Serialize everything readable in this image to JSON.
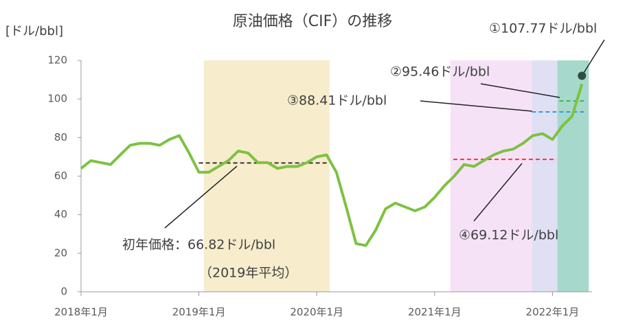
{
  "chart_data": {
    "type": "line",
    "title": "原油価格（CIF）の推移",
    "y_label": "[ドル/bbl]",
    "categories": [
      "2018年1月",
      null,
      null,
      null,
      null,
      null,
      null,
      null,
      null,
      null,
      null,
      null,
      "2019年1月",
      null,
      null,
      null,
      null,
      null,
      null,
      null,
      null,
      null,
      null,
      null,
      "2020年1月",
      null,
      null,
      null,
      null,
      null,
      null,
      null,
      null,
      null,
      null,
      null,
      "2021年1月",
      null,
      null,
      null,
      null,
      null,
      null,
      null,
      null,
      null,
      null,
      null,
      "2022年1月",
      null,
      null,
      null
    ],
    "series": [
      {
        "name": "原油価格",
        "color": "#7dc242",
        "values": [
          64,
          68,
          67,
          66,
          71,
          76,
          77,
          77,
          76,
          79,
          81,
          72,
          62,
          62,
          65,
          68,
          73,
          72,
          67,
          67,
          64,
          65,
          65,
          67,
          70,
          71,
          62,
          44,
          25,
          24,
          32,
          43,
          46,
          44,
          42,
          44,
          49,
          55,
          60,
          66,
          65,
          68,
          71,
          73,
          74,
          77,
          81,
          82,
          79,
          86,
          91,
          107.77
        ]
      }
    ],
    "ylim": [
      0,
      120
    ],
    "yticks": [
      0,
      20,
      40,
      60,
      80,
      100,
      120
    ],
    "bands": [
      {
        "from": 12.5,
        "to": 25.3,
        "color": "#f7eccc"
      },
      {
        "from": 37.6,
        "to": 45.9,
        "color": "#f6e2f7"
      },
      {
        "from": 45.9,
        "to": 48.5,
        "color": "#e0e0f5"
      },
      {
        "from": 48.5,
        "to": 51.7,
        "color": "#a6d9cc"
      }
    ],
    "reference_lines": [
      {
        "value": 66.82,
        "from": 12.0,
        "to": 25.2,
        "color": "#333333"
      },
      {
        "value": 68.7,
        "from": 37.9,
        "to": 48.4,
        "color": "#ff3333"
      },
      {
        "value": 93.3,
        "from": 45.9,
        "to": 51.5,
        "color": "#3399dd"
      },
      {
        "value": 99,
        "from": 48.7,
        "to": 51.5,
        "color": "#33bb55"
      }
    ],
    "annotations": [
      "①107.77ドル/bbl",
      "②95.46ドル/bbl",
      "③88.41ドル/bbl",
      "④69.12ドル/bbl",
      "初年価格：66.82ドル/bbl",
      "（2019年平均）"
    ]
  }
}
